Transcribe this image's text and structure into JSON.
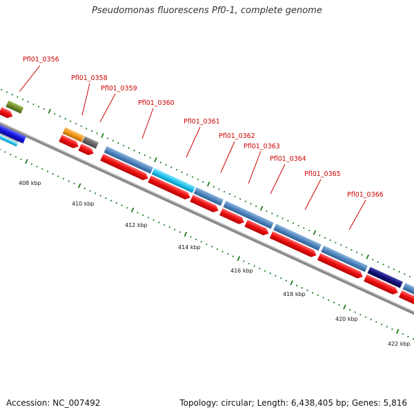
{
  "title": "Pseudomonas fluorescens Pf0-1, complete genome",
  "footer": {
    "accession": "Accession: NC_007492",
    "summary": "Topology: circular; Length: 6,438,405 bp; Genes: 5,816"
  },
  "backbone_color": "#8a8a8a",
  "tick_color": "#1a7a1a",
  "label_color": "#cc0000",
  "ticks": [
    {
      "kbp": 408,
      "label": "408 kbp"
    },
    {
      "kbp": 410,
      "label": "410 kbp"
    },
    {
      "kbp": 412,
      "label": "412 kbp"
    },
    {
      "kbp": 414,
      "label": "414 kbp"
    },
    {
      "kbp": 416,
      "label": "416 kbp"
    },
    {
      "kbp": 418,
      "label": "418 kbp"
    },
    {
      "kbp": 420,
      "label": "420 kbp"
    },
    {
      "kbp": 422,
      "label": "422 kbp"
    }
  ],
  "genes": [
    {
      "id": "Pfl01_0356",
      "label": "Pfl01_0356"
    },
    {
      "id": "Pfl01_0358",
      "label": "Pfl01_0358"
    },
    {
      "id": "Pfl01_0359",
      "label": "Pfl01_0359"
    },
    {
      "id": "Pfl01_0360",
      "label": "Pfl01_0360"
    },
    {
      "id": "Pfl01_0361",
      "label": "Pfl01_0361"
    },
    {
      "id": "Pfl01_0362",
      "label": "Pfl01_0362"
    },
    {
      "id": "Pfl01_0363",
      "label": "Pfl01_0363"
    },
    {
      "id": "Pfl01_0364",
      "label": "Pfl01_0364"
    },
    {
      "id": "Pfl01_0365",
      "label": "Pfl01_0365"
    },
    {
      "id": "Pfl01_0366",
      "label": "Pfl01_0366"
    }
  ],
  "feature_colors": {
    "cds": "#ee1111",
    "gene_steelblue": "#4f86bf",
    "gene_cyan": "#22c4ee",
    "gene_olive": "#6f8a2a",
    "gene_orange": "#f0961a",
    "gene_gray": "#666666",
    "gene_navy": "#12127a",
    "gene_blue": "#1414e0",
    "gene_lightgray": "#c8c8c8"
  }
}
